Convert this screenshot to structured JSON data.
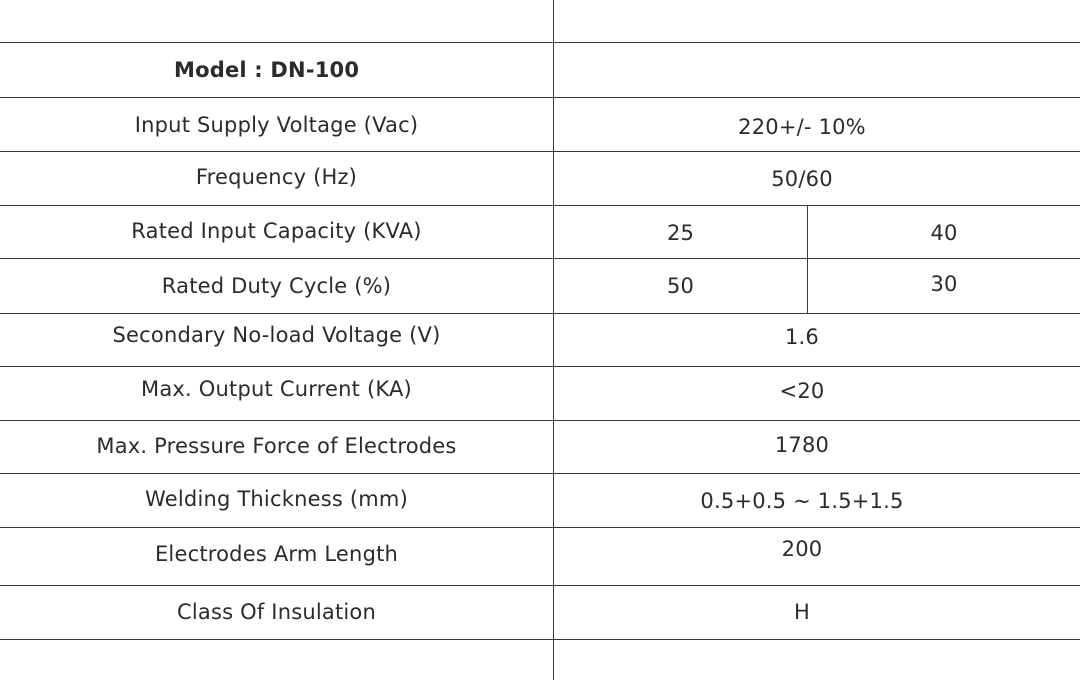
{
  "specs_table": {
    "header": {
      "label": "Model : DN-100",
      "value": ""
    },
    "rows": [
      {
        "label": "Input Supply Voltage (Vac)",
        "value": "220+/- 10%"
      },
      {
        "label": "Frequency (Hz)",
        "value": "50/60"
      },
      {
        "label": "Rated Input Capacity (KVA)",
        "values": [
          "25",
          "40"
        ]
      },
      {
        "label": "Rated Duty Cycle (%)",
        "values": [
          "50",
          "30"
        ]
      },
      {
        "label": "Secondary No-load Voltage (V)",
        "value": "1.6"
      },
      {
        "label": "Max. Output Current (KA)",
        "value": "<20"
      },
      {
        "label": "Max. Pressure Force of Electrodes",
        "value": "1780"
      },
      {
        "label": "Welding Thickness (mm)",
        "value": "0.5+0.5 ~ 1.5+1.5"
      },
      {
        "label": "Electrodes Arm Length",
        "value": "200"
      },
      {
        "label": "Class Of Insulation",
        "value": "H"
      }
    ]
  }
}
